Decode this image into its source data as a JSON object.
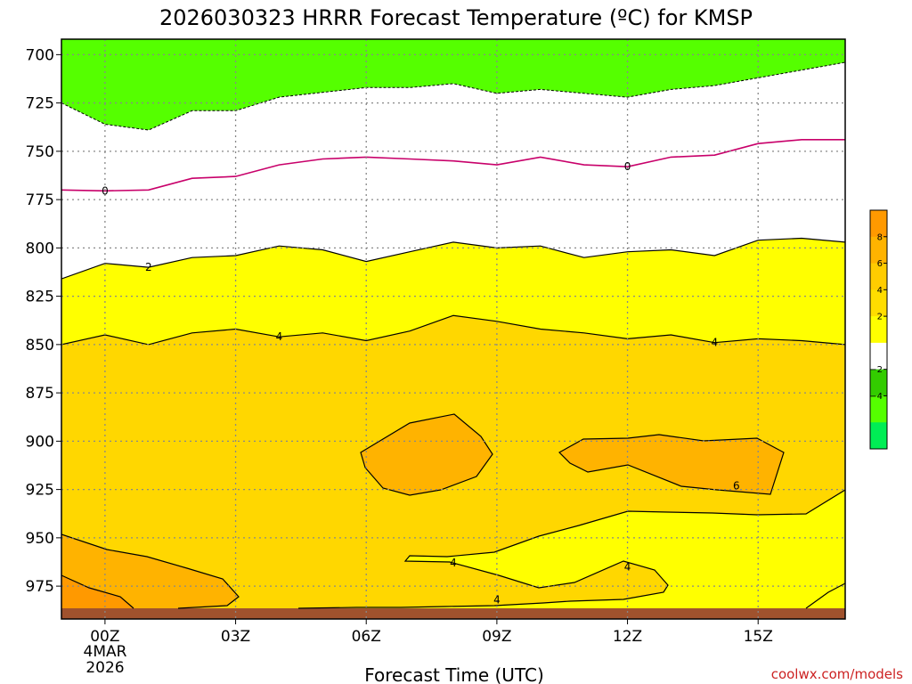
{
  "chart_data": {
    "type": "contour",
    "title": "2026030323 HRRR Forecast Temperature (ºC) for KMSP",
    "xlabel": "Forecast Time (UTC)",
    "ylabel": "",
    "x_ticks": [
      "00Z",
      "03Z",
      "06Z",
      "09Z",
      "12Z",
      "15Z"
    ],
    "x_tick_hours": [
      0,
      3,
      6,
      9,
      12,
      15
    ],
    "x_date_label": [
      "4MAR",
      "2026"
    ],
    "x_range_hours": [
      -1,
      17
    ],
    "y_ticks": [
      700,
      725,
      750,
      775,
      800,
      825,
      850,
      875,
      900,
      925,
      950,
      975
    ],
    "y_range_hpa": [
      692,
      992
    ],
    "grid": true,
    "surface_level_hpa": 987,
    "contour_levels": [
      {
        "value": -2,
        "color": "#55ff00",
        "boundary": [
          [
            -1,
            725
          ],
          [
            0,
            736
          ],
          [
            1,
            739
          ],
          [
            2,
            729
          ],
          [
            3,
            729
          ],
          [
            4,
            722
          ],
          [
            6,
            717
          ],
          [
            7,
            717
          ],
          [
            8,
            715
          ],
          [
            9,
            720
          ],
          [
            10,
            718
          ],
          [
            11,
            720
          ],
          [
            12,
            722
          ],
          [
            13,
            718
          ],
          [
            14,
            716
          ],
          [
            15,
            712
          ],
          [
            16,
            708
          ],
          [
            17,
            704
          ]
        ]
      },
      {
        "value": 0,
        "color": "#c8006a",
        "label_hours": [
          0,
          12
        ],
        "boundary": [
          [
            -1,
            770
          ],
          [
            0,
            770.5
          ],
          [
            1,
            770
          ],
          [
            2,
            764
          ],
          [
            3,
            763
          ],
          [
            4,
            757
          ],
          [
            5,
            754
          ],
          [
            6,
            753
          ],
          [
            7,
            754
          ],
          [
            8,
            755
          ],
          [
            9,
            757
          ],
          [
            10,
            753
          ],
          [
            11,
            757
          ],
          [
            12,
            758
          ],
          [
            13,
            753
          ],
          [
            14,
            752
          ],
          [
            15,
            746
          ],
          [
            16,
            744
          ],
          [
            17,
            744
          ]
        ]
      },
      {
        "value": 2,
        "color": "#ffff00",
        "label_hours": [
          1
        ],
        "boundary": [
          [
            -1,
            816
          ],
          [
            0,
            808
          ],
          [
            1,
            810
          ],
          [
            2,
            805
          ],
          [
            3,
            804
          ],
          [
            4,
            799
          ],
          [
            5,
            801
          ],
          [
            6,
            807
          ],
          [
            7,
            802
          ],
          [
            8,
            797
          ],
          [
            9,
            800
          ],
          [
            10,
            799
          ],
          [
            11,
            805
          ],
          [
            12,
            802
          ],
          [
            13,
            801
          ],
          [
            14,
            804
          ],
          [
            15,
            796
          ],
          [
            16,
            795
          ],
          [
            17,
            797
          ]
        ]
      },
      {
        "value": 4,
        "color": "#ffd700",
        "label_hours": [
          4,
          14
        ],
        "boundary": [
          [
            -1,
            850
          ],
          [
            0,
            845
          ],
          [
            1,
            850
          ],
          [
            2,
            844
          ],
          [
            3,
            842
          ],
          [
            4,
            846
          ],
          [
            5,
            844
          ],
          [
            6,
            848
          ],
          [
            7,
            843
          ],
          [
            8,
            835
          ],
          [
            9,
            838
          ],
          [
            10,
            842
          ],
          [
            11,
            844
          ],
          [
            12,
            847
          ],
          [
            13,
            845
          ],
          [
            14,
            849
          ],
          [
            15,
            847
          ],
          [
            16,
            848
          ],
          [
            17,
            850
          ]
        ]
      },
      {
        "value": 6,
        "color": "#ffb300",
        "label_hours": [
          14.5
        ]
      },
      {
        "value": 8,
        "color": "#ff9900"
      }
    ],
    "contour_labels": [
      {
        "text": "0",
        "hour": 0,
        "hpa": 770.5
      },
      {
        "text": "0",
        "hour": 12,
        "hpa": 758
      },
      {
        "text": "2",
        "hour": 1,
        "hpa": 810
      },
      {
        "text": "4",
        "hour": 4,
        "hpa": 846
      },
      {
        "text": "4",
        "hour": 14,
        "hpa": 849
      },
      {
        "text": "6",
        "hour": 14.5,
        "hpa": 923
      },
      {
        "text": "4",
        "hour": 8,
        "hpa": 963
      },
      {
        "text": "4",
        "hour": 12,
        "hpa": 965
      },
      {
        "text": "4",
        "hour": 9,
        "hpa": 982
      }
    ],
    "colorbar": {
      "colors": [
        "#ff9900",
        "#ffb300",
        "#ffcc00",
        "#ffdd00",
        "#ffff00",
        "#ffffff",
        "#33cc00",
        "#55ff00",
        "#00ee55"
      ],
      "labels": [
        "8",
        "6",
        "4",
        "2",
        "−2",
        "−4"
      ]
    },
    "colors": {
      "frame": "#000000",
      "grid": "#888888",
      "surface": "#a0522d"
    }
  },
  "credit": "coolwx.com/models"
}
